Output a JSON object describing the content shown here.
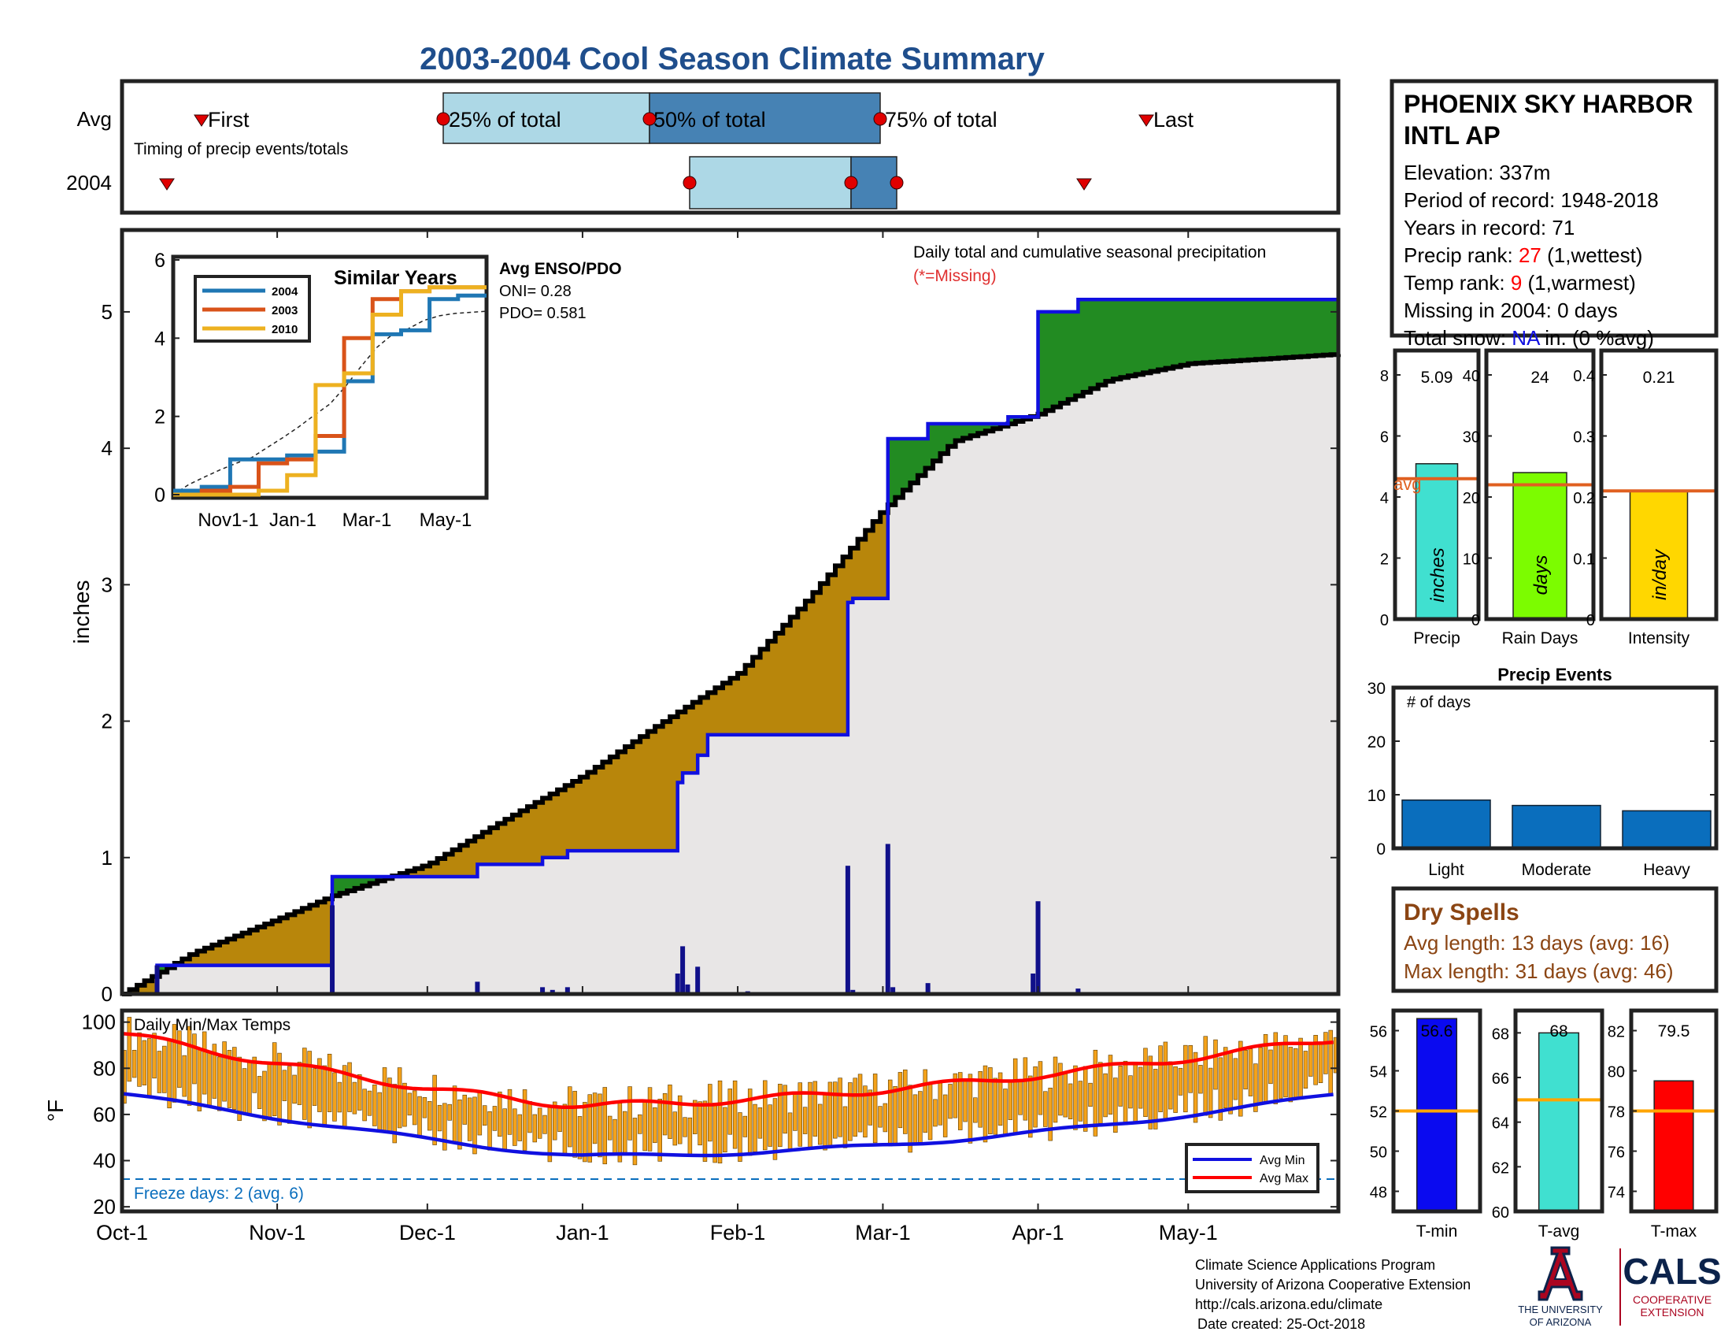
{
  "title": "2003-2004 Cool Season Climate Summary",
  "colors": {
    "title_blue": "#1F4E8C",
    "light_blue": "#ADD8E6",
    "mid_blue": "#4682B4",
    "line_blue": "#1010E0",
    "brown_fill": "#B8860B",
    "green_fill": "#228B22",
    "gray_fill": "#E8E6E6",
    "orange_line": "#E06020",
    "temp_orange": "#F4A21A",
    "red": "#FF0000",
    "cyan": "#40E0D0",
    "lime": "#7CFC00",
    "gold": "#FFD700",
    "bar_blue": "#0A6EBD",
    "dry_brown": "#8B4513"
  },
  "timing": {
    "row_labels": [
      "Avg",
      "2004"
    ],
    "caption": "Timing of precip events/totals",
    "avg_labels": {
      "first": "First",
      "p25": "25% of total",
      "p50": "50% of total",
      "p75": "75% of total",
      "last": "Last"
    }
  },
  "station": {
    "name_line1": "PHOENIX SKY HARBOR",
    "name_line2": "INTL AP",
    "elevation": "Elevation: 337m",
    "period": "Period of record: 1948-2018",
    "years": "Years in record: 71",
    "precip_rank_label": "Precip rank: ",
    "precip_rank_value": "27",
    "precip_rank_note": " (1,wettest)",
    "temp_rank_label": "Temp rank: ",
    "temp_rank_value": "9",
    "temp_rank_note": " (1,warmest)",
    "missing": "Missing in 2004: 0 days",
    "snow_label": "Total snow: ",
    "snow_value": "NA",
    "snow_note": " in. (0 %avg)"
  },
  "main_chart": {
    "ylabel": "inches",
    "note_line1": "Daily total and cumulative seasonal precipitation",
    "note_line2": "(*=Missing)",
    "month_labels": [
      "Oct-1",
      "Nov-1",
      "Dec-1",
      "Jan-1",
      "Feb-1",
      "Mar-1",
      "Apr-1",
      "May-1"
    ],
    "y_ticks": [
      "0",
      "1",
      "2",
      "3",
      "4",
      "5"
    ]
  },
  "inset": {
    "title": "Similar Years",
    "legend": [
      "2004",
      "2003",
      "2010"
    ],
    "x_ticks": [
      "Nov1-1",
      "Jan-1",
      "Mar-1",
      "May-1"
    ],
    "y_ticks": [
      "0",
      "2",
      "4",
      "6"
    ],
    "enso_title": "Avg ENSO/PDO",
    "oni": "ONI= 0.28",
    "pdo": "PDO= 0.581"
  },
  "temps": {
    "title": "Daily Min/Max Temps",
    "ylabel": "°F",
    "y_ticks": [
      "20",
      "40",
      "60",
      "80",
      "100"
    ],
    "freeze": "Freeze days: 2 (avg. 6)",
    "legend_min": "Avg Min",
    "legend_max": "Avg Max"
  },
  "summary_bars": [
    {
      "label": "Precip",
      "value": "5.09",
      "unit": "inches",
      "avg_label": "avg",
      "ticks": [
        "0",
        "2",
        "4",
        "6",
        "8"
      ]
    },
    {
      "label": "Rain Days",
      "value": "24",
      "unit": "days",
      "ticks": [
        "0",
        "10",
        "20",
        "30",
        "40"
      ]
    },
    {
      "label": "Intensity",
      "value": "0.21",
      "unit": "in/day",
      "ticks": [
        "0",
        "0.1",
        "0.2",
        "0.3",
        "0.4"
      ]
    }
  ],
  "precip_events": {
    "title": "Precip Events",
    "caption": "# of days",
    "ticks": [
      "0",
      "10",
      "20",
      "30"
    ],
    "categories": [
      "Light",
      "Moderate",
      "Heavy"
    ]
  },
  "dry_spells": {
    "title": "Dry Spells",
    "avg": "Avg length: 13 days (avg: 16)",
    "max": "Max length: 31 days (avg: 46)"
  },
  "temp_bars": [
    {
      "label": "T-min",
      "value": "56.6",
      "ticks": [
        "48",
        "50",
        "52",
        "54",
        "56"
      ]
    },
    {
      "label": "T-avg",
      "value": "68",
      "ticks": [
        "60",
        "62",
        "64",
        "66",
        "68"
      ]
    },
    {
      "label": "T-max",
      "value": "79.5",
      "ticks": [
        "74",
        "76",
        "78",
        "80",
        "82"
      ]
    }
  ],
  "footer": {
    "line1": "Climate Science Applications Program",
    "line2": "University of Arizona Cooperative Extension",
    "line3": "http://cals.arizona.edu/climate",
    "line4": "Date created: 25-Oct-2018",
    "ua_line1": "THE UNIVERSITY",
    "ua_line2": "OF ARIZONA",
    "cals": "CALS",
    "coop1": "COOPERATIVE",
    "coop2": "EXTENSION"
  },
  "chart_data": [
    {
      "type": "area",
      "title": "Daily total and cumulative seasonal precipitation",
      "ylabel": "inches",
      "ylim": [
        0,
        5.6
      ],
      "x_range": [
        "Oct-1",
        "May-31"
      ],
      "series": [
        {
          "name": "2004",
          "x": [
            "Oct-1",
            "Oct-8",
            "Oct-8",
            "Nov-12",
            "Nov-12",
            "Dec-11",
            "Dec-11",
            "Dec-24",
            "Dec-24",
            "Dec-29",
            "Dec-29",
            "Jan-20",
            "Jan-20",
            "Jan-21",
            "Jan-21",
            "Jan-24",
            "Jan-24",
            "Jan-26",
            "Jan-26",
            "Feb-3",
            "Feb-3",
            "Feb-23",
            "Feb-23",
            "Feb-24",
            "Feb-24",
            "Mar-2",
            "Mar-2",
            "Mar-4",
            "Mar-4",
            "Mar-10",
            "Mar-10",
            "Mar-26",
            "Mar-26",
            "Apr-1",
            "Apr-1",
            "Apr-9",
            "Apr-9",
            "May-31"
          ],
          "values": [
            0,
            0,
            0.21,
            0.21,
            0.86,
            0.86,
            0.95,
            0.95,
            1.0,
            1.0,
            1.05,
            1.05,
            1.55,
            1.55,
            1.62,
            1.62,
            1.75,
            1.75,
            1.9,
            1.9,
            1.9,
            1.9,
            2.87,
            2.87,
            2.9,
            2.9,
            4.07,
            4.07,
            4.07,
            4.07,
            4.18,
            4.18,
            4.23,
            4.23,
            5.0,
            5.0,
            5.09,
            5.09
          ]
        },
        {
          "name": "avg cumulative",
          "x": [
            "Oct-1",
            "Oct-15",
            "Nov-1",
            "Nov-12",
            "Dec-1",
            "Dec-15",
            "Jan-1",
            "Jan-15",
            "Feb-1",
            "Feb-15",
            "Mar-1",
            "Mar-15",
            "Apr-1",
            "Apr-15",
            "May-1",
            "May-31"
          ],
          "values": [
            0,
            0.3,
            0.55,
            0.72,
            0.95,
            1.25,
            1.6,
            1.95,
            2.35,
            2.9,
            3.55,
            4.05,
            4.25,
            4.5,
            4.62,
            4.69
          ]
        }
      ],
      "daily_bars": [
        {
          "x": "Oct-8",
          "value": 0.21
        },
        {
          "x": "Nov-12",
          "value": 0.65
        },
        {
          "x": "Dec-11",
          "value": 0.09
        },
        {
          "x": "Dec-24",
          "value": 0.05
        },
        {
          "x": "Dec-26",
          "value": 0.03
        },
        {
          "x": "Dec-29",
          "value": 0.05
        },
        {
          "x": "Jan-20",
          "value": 0.15
        },
        {
          "x": "Jan-21",
          "value": 0.35
        },
        {
          "x": "Jan-22",
          "value": 0.07
        },
        {
          "x": "Jan-24",
          "value": 0.2
        },
        {
          "x": "Feb-3",
          "value": 0.02
        },
        {
          "x": "Feb-23",
          "value": 0.94
        },
        {
          "x": "Feb-24",
          "value": 0.03
        },
        {
          "x": "Mar-2",
          "value": 1.1
        },
        {
          "x": "Mar-3",
          "value": 0.05
        },
        {
          "x": "Mar-10",
          "value": 0.08
        },
        {
          "x": "Mar-31",
          "value": 0.15
        },
        {
          "x": "Apr-1",
          "value": 0.68
        },
        {
          "x": "Apr-9",
          "value": 0.04
        }
      ]
    },
    {
      "type": "line",
      "title": "Similar Years",
      "ylim": [
        0,
        6
      ],
      "series": [
        {
          "name": "2004",
          "values": [
            0.1,
            0.2,
            0.9,
            0.9,
            1.0,
            1.1,
            2.9,
            4.1,
            4.2,
            5.0,
            5.09,
            5.09
          ]
        },
        {
          "name": "2003",
          "values": [
            0,
            0.1,
            0.2,
            0.8,
            0.9,
            1.5,
            4.0,
            5.0,
            5.2,
            5.3,
            5.3,
            5.3
          ]
        },
        {
          "name": "2010",
          "values": [
            0,
            0,
            0,
            0.1,
            0.5,
            2.8,
            3.1,
            4.6,
            5.2,
            5.3,
            5.3,
            5.3
          ]
        }
      ]
    },
    {
      "type": "bar",
      "title": "Precip Events",
      "categories": [
        "Light",
        "Moderate",
        "Heavy"
      ],
      "values": [
        9,
        8,
        7
      ],
      "ylim": [
        0,
        30
      ]
    },
    {
      "type": "bar",
      "categories": [
        "Precip",
        "Rain Days",
        "Intensity"
      ],
      "values": [
        5.09,
        24,
        0.21
      ],
      "averages": [
        4.6,
        22,
        0.21
      ]
    },
    {
      "type": "bar",
      "categories": [
        "T-min",
        "T-avg",
        "T-max"
      ],
      "values": [
        56.6,
        68,
        79.5
      ],
      "averages": [
        52,
        65,
        78
      ]
    }
  ]
}
